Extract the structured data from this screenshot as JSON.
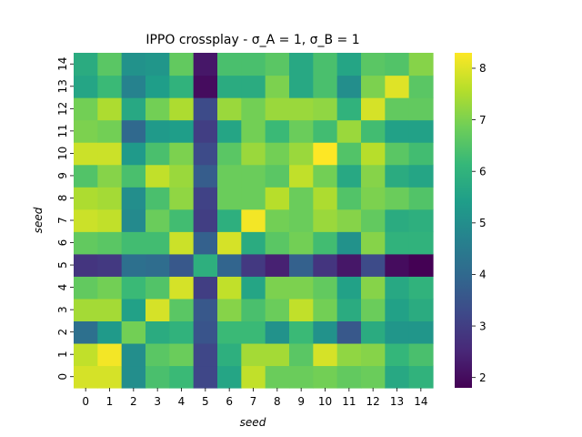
{
  "chart_data": {
    "type": "heatmap",
    "title": "IPPO crossplay - σ_A = 1, σ_B = 1",
    "xlabel": "seed",
    "ylabel": "seed",
    "x_categories": [
      "0",
      "1",
      "2",
      "3",
      "4",
      "5",
      "6",
      "7",
      "8",
      "9",
      "10",
      "11",
      "12",
      "13",
      "14"
    ],
    "y_categories": [
      "0",
      "1",
      "2",
      "3",
      "4",
      "5",
      "6",
      "7",
      "8",
      "9",
      "10",
      "11",
      "12",
      "13",
      "14"
    ],
    "colormap": "viridis",
    "vmin": 1.8,
    "vmax": 8.3,
    "colorbar_ticks": [
      2,
      3,
      4,
      5,
      6,
      7,
      8
    ],
    "values": [
      [
        7.9,
        7.9,
        5.0,
        6.4,
        6.2,
        3.2,
        5.6,
        7.7,
        6.8,
        6.8,
        6.9,
        6.7,
        6.8,
        5.7,
        6.0
      ],
      [
        7.7,
        8.2,
        5.0,
        6.6,
        6.8,
        3.2,
        5.9,
        7.4,
        7.4,
        6.6,
        7.9,
        7.2,
        7.1,
        6.1,
        6.4
      ],
      [
        4.2,
        5.3,
        6.9,
        5.8,
        6.0,
        3.5,
        6.2,
        6.2,
        5.1,
        6.2,
        5.1,
        3.6,
        5.8,
        5.2,
        5.2
      ],
      [
        7.4,
        7.4,
        5.5,
        7.9,
        6.6,
        3.6,
        7.1,
        6.4,
        6.8,
        7.7,
        6.9,
        5.8,
        6.8,
        5.5,
        5.8
      ],
      [
        6.7,
        6.9,
        6.2,
        6.5,
        7.9,
        3.0,
        7.7,
        5.6,
        7.0,
        7.0,
        6.7,
        5.5,
        7.1,
        5.7,
        6.0
      ],
      [
        2.8,
        2.9,
        4.2,
        4.1,
        3.6,
        5.9,
        3.9,
        2.9,
        2.4,
        3.8,
        2.8,
        2.2,
        3.3,
        2.0,
        1.8
      ],
      [
        6.7,
        6.6,
        6.3,
        6.3,
        7.8,
        3.8,
        7.9,
        5.8,
        6.6,
        6.9,
        6.3,
        5.1,
        7.1,
        6.0,
        6.0
      ],
      [
        7.8,
        7.7,
        4.9,
        6.8,
        6.3,
        3.0,
        5.9,
        8.2,
        6.9,
        6.8,
        7.3,
        7.1,
        6.7,
        5.8,
        5.9
      ],
      [
        7.5,
        7.4,
        5.0,
        6.4,
        7.2,
        3.1,
        6.8,
        6.8,
        7.6,
        6.8,
        7.5,
        6.5,
        7.0,
        6.8,
        6.5
      ],
      [
        6.5,
        7.1,
        6.4,
        7.7,
        7.3,
        3.7,
        6.8,
        6.8,
        6.6,
        7.7,
        6.9,
        5.7,
        7.1,
        5.8,
        5.6
      ],
      [
        7.8,
        7.8,
        5.3,
        6.4,
        7.0,
        3.3,
        6.6,
        7.3,
        6.9,
        7.3,
        8.3,
        6.5,
        7.6,
        6.6,
        6.3
      ],
      [
        7.0,
        6.9,
        4.0,
        5.3,
        5.4,
        3.0,
        5.6,
        6.9,
        6.2,
        6.8,
        6.3,
        7.3,
        6.3,
        5.5,
        5.5
      ],
      [
        6.9,
        7.5,
        5.7,
        6.9,
        7.5,
        3.3,
        7.3,
        6.9,
        7.3,
        7.3,
        7.2,
        6.0,
        7.9,
        6.7,
        6.7
      ],
      [
        5.6,
        6.2,
        4.7,
        5.4,
        6.0,
        2.0,
        5.8,
        5.8,
        7.0,
        5.7,
        6.4,
        5.0,
        7.0,
        8.0,
        6.6
      ],
      [
        5.8,
        6.6,
        5.1,
        5.2,
        6.7,
        2.2,
        6.4,
        6.4,
        6.6,
        5.7,
        6.4,
        5.6,
        6.6,
        6.5,
        7.1
      ]
    ]
  }
}
